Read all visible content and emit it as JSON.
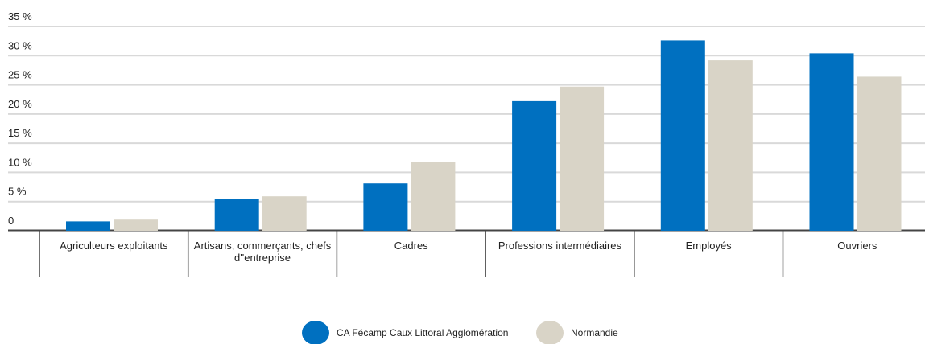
{
  "chart_data": {
    "type": "bar",
    "categories": [
      "Agriculteurs exploitants",
      "Artisans, commerçants, chefs d''entreprise",
      "Cadres",
      "Professions intermédiaires",
      "Employés",
      "Ouvriers"
    ],
    "series": [
      {
        "name": "CA Fécamp Caux Littoral Agglomération",
        "color": "#0070c0",
        "values": [
          1.6,
          5.4,
          8.1,
          22.2,
          32.6,
          30.4
        ]
      },
      {
        "name": "Normandie",
        "color": "#d9d4c7",
        "values": [
          1.9,
          5.9,
          11.8,
          24.7,
          29.2,
          26.4
        ]
      }
    ],
    "ylim": [
      0,
      35
    ],
    "yticks": [
      0,
      {
        "value": 5,
        "label": "5 %"
      },
      {
        "value": 10,
        "label": "10 %"
      },
      {
        "value": 15,
        "label": "15 %"
      },
      {
        "value": 20,
        "label": "20 %"
      },
      {
        "value": 25,
        "label": "25 %"
      },
      {
        "value": 30,
        "label": "30 %"
      },
      {
        "value": 35,
        "label": "35 %"
      }
    ],
    "grid": true,
    "legend": "bottom"
  }
}
